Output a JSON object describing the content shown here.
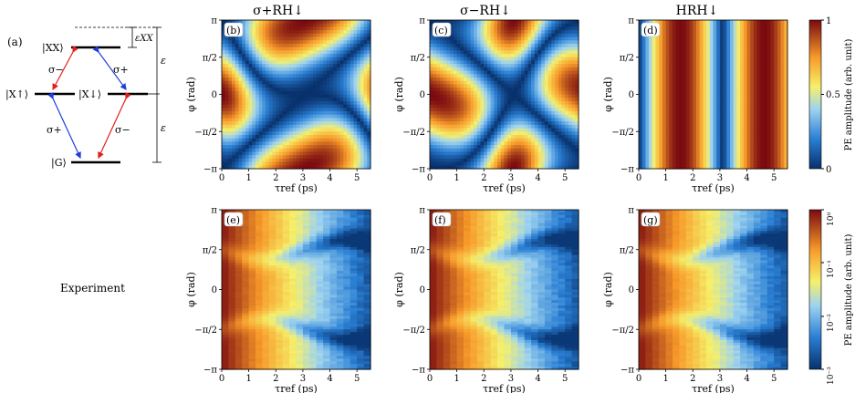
{
  "panel_a": {
    "label": "(a)",
    "levels": {
      "xx": "|XX⟩",
      "x_up": "|X↑⟩",
      "x_down": "|X↓⟩",
      "g": "|G⟩"
    },
    "transitions": {
      "xx_up": "σ−",
      "xx_down": "σ+",
      "up_g": "σ+",
      "down_g": "σ−"
    },
    "energies": {
      "exx": "εXX",
      "e_upper": "ε",
      "e_lower": "ε"
    },
    "colors": {
      "blue": "#1f3fd8",
      "red": "#e0201c"
    }
  },
  "row_label": "Experiment",
  "column_titles": [
    "σ+RH↓",
    "σ−RH↓",
    "HRH↓"
  ],
  "panel_labels": [
    "(b)",
    "(c)",
    "(d)",
    "(e)",
    "(f)",
    "(g)"
  ],
  "axes": {
    "xlabel": "τref (ps)",
    "ylabel": "φ (rad)",
    "xticks": [
      "0",
      "1",
      "2",
      "3",
      "4",
      "5"
    ],
    "yticks": [
      "π",
      "π/2",
      "0",
      "−π/2",
      "−π"
    ]
  },
  "colorbar_top": {
    "label": "PE amplitude (arb. unit)",
    "ticks": [
      "1",
      "0.5",
      "0"
    ]
  },
  "colorbar_bottom": {
    "label": "PE amplitude (arb. unit)",
    "ticks": [
      "10⁰",
      "10⁻¹",
      "10⁻²",
      "10⁻³"
    ]
  },
  "chart_data": [
    {
      "type": "heatmap",
      "panel": "(b)",
      "title": "σ+RH↓",
      "xlabel": "τref (ps)",
      "ylabel": "φ (rad)",
      "xlim": [
        0,
        5.5
      ],
      "ylim": [
        -3.1416,
        3.1416
      ],
      "pattern": "elliptical maxima tilted, centered near (1.6, 0) and (4.7, 0), and at φ = ±π",
      "colorscale": "linear 0–1"
    },
    {
      "type": "heatmap",
      "panel": "(c)",
      "title": "σ−RH↓",
      "xlabel": "τref (ps)",
      "ylabel": "φ (rad)",
      "xlim": [
        0,
        5.5
      ],
      "ylim": [
        -3.1416,
        3.1416
      ],
      "pattern": "elliptical maxima tilted opposite, centered near (1.6, 0) and (4.7, 0), and at φ = ±π",
      "colorscale": "linear 0–1"
    },
    {
      "type": "heatmap",
      "panel": "(d)",
      "title": "HRH↓",
      "xlabel": "τref (ps)",
      "ylabel": "φ (rad)",
      "xlim": [
        0,
        5.5
      ],
      "ylim": [
        -3.1416,
        3.1416
      ],
      "pattern": "round maxima near (1.6, 0), (4.7, 0) and at φ = ±π",
      "colorscale": "linear 0–1"
    },
    {
      "type": "heatmap",
      "panel": "(e)",
      "title": "",
      "xlabel": "τref (ps)",
      "ylabel": "φ (rad)",
      "xlim": [
        0,
        5.5
      ],
      "ylim": [
        -3.1416,
        3.1416
      ],
      "pattern": "high near τref 0–2 ps, decaying with a minimum band near φ = ±π/2",
      "colorscale": "log 1e-3 – 1"
    },
    {
      "type": "heatmap",
      "panel": "(f)",
      "title": "",
      "xlabel": "τref (ps)",
      "ylabel": "φ (rad)",
      "xlim": [
        0,
        5.5
      ],
      "ylim": [
        -3.1416,
        3.1416
      ],
      "pattern": "high near τref 0–2 ps, decaying with a minimum band near φ = ±π/2",
      "colorscale": "log 1e-3 – 1"
    },
    {
      "type": "heatmap",
      "panel": "(g)",
      "title": "",
      "xlabel": "τref (ps)",
      "ylabel": "φ (rad)",
      "xlim": [
        0,
        5.5
      ],
      "ylim": [
        -3.1416,
        3.1416
      ],
      "pattern": "high near τref 0–2 ps, noisy minima beyond 3 ps around φ = ±π/2",
      "colorscale": "log 1e-3 – 1"
    }
  ]
}
